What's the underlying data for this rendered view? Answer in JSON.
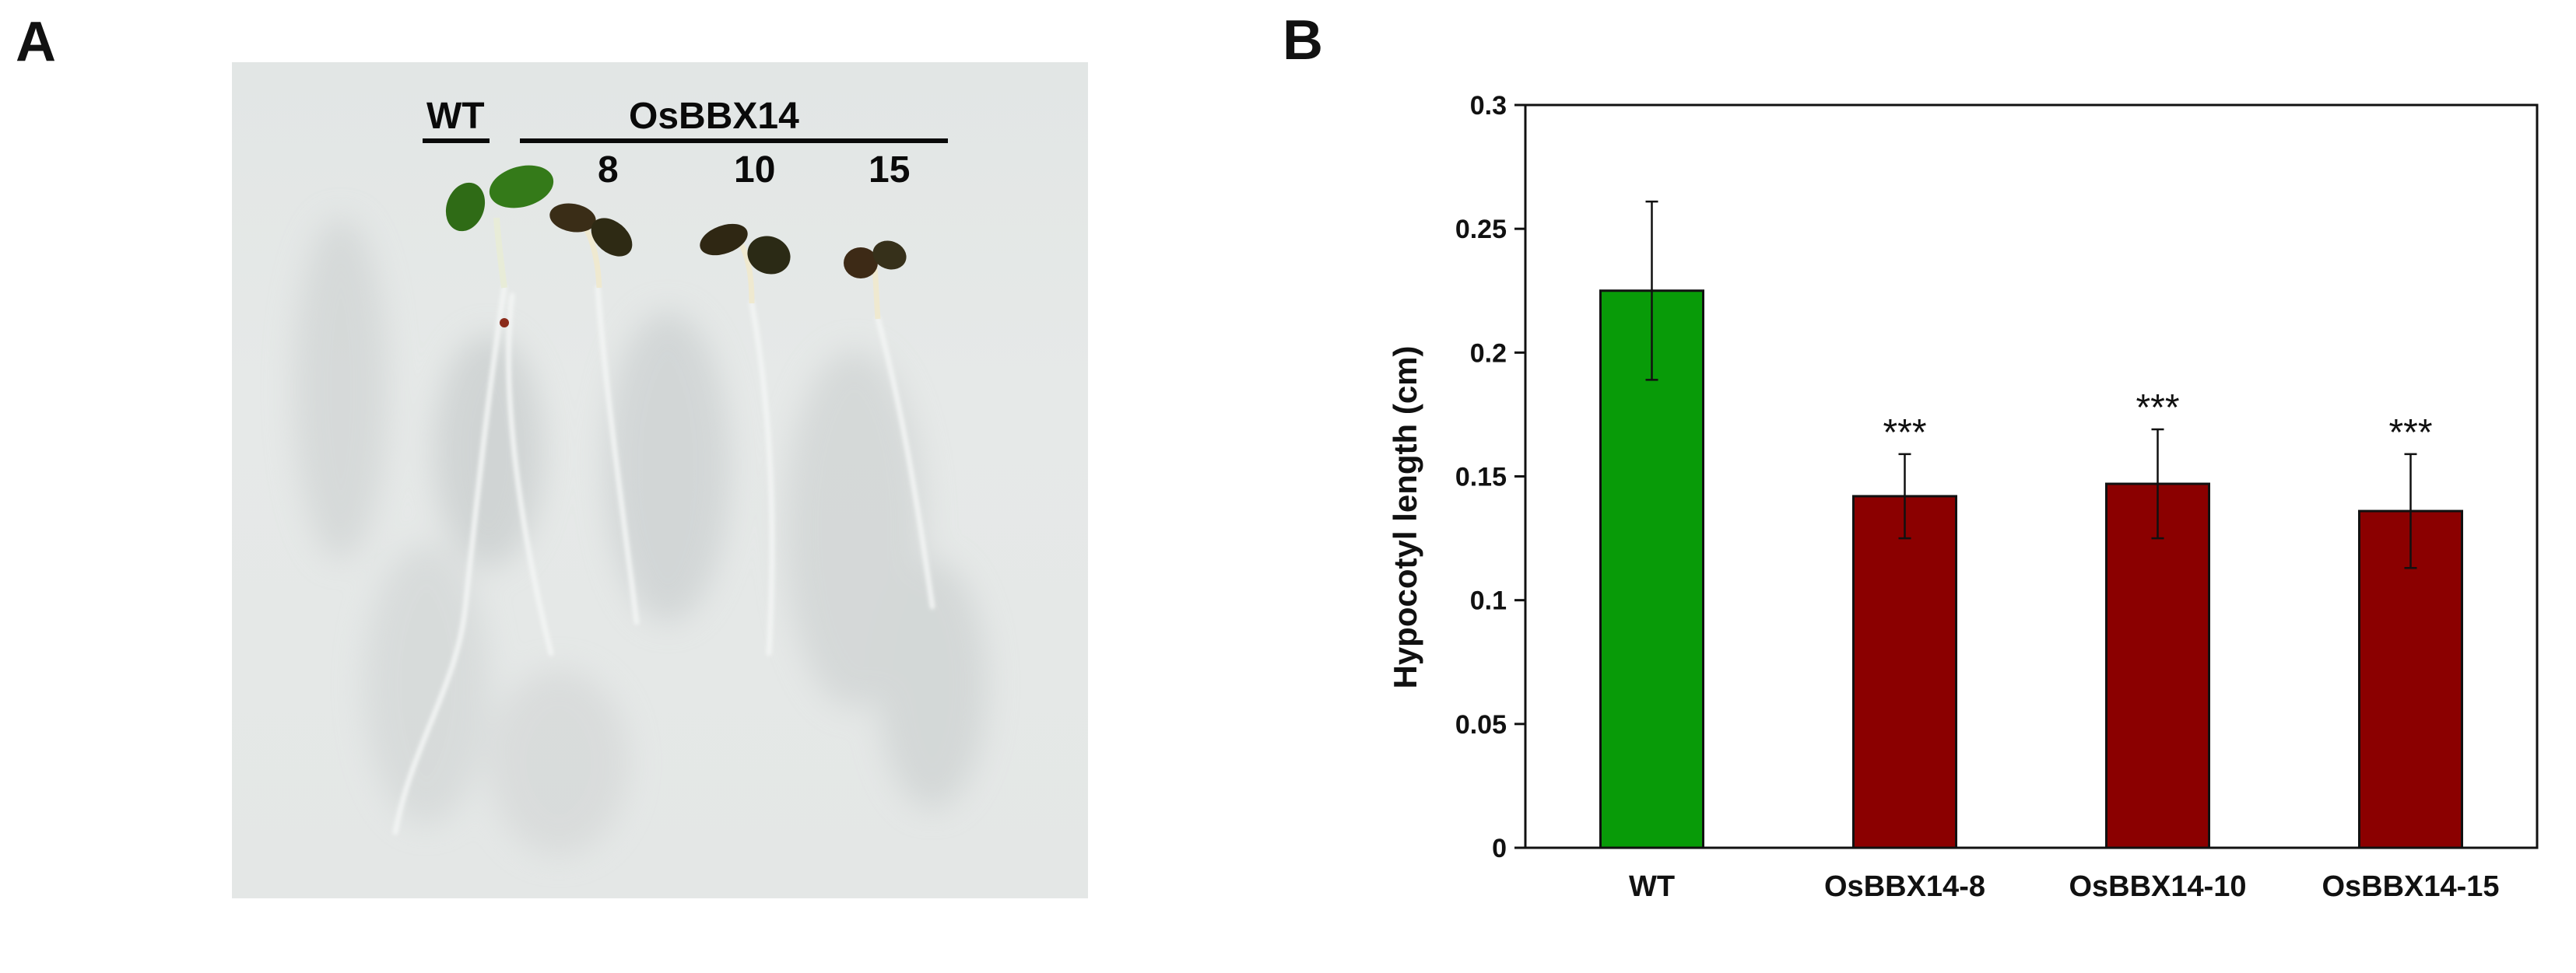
{
  "panel_a": {
    "label": "A",
    "wt_label": "WT",
    "group_label": "OsBBX14",
    "line_labels": [
      "8",
      "10",
      "15"
    ]
  },
  "panel_b": {
    "label": "B"
  },
  "chart_data": {
    "type": "bar",
    "categories": [
      "WT",
      "OsBBX14-8",
      "OsBBX14-10",
      "OsBBX14-15"
    ],
    "values": [
      0.225,
      0.142,
      0.147,
      0.136
    ],
    "error": [
      0.036,
      0.017,
      0.022,
      0.023
    ],
    "significance": [
      "",
      "***",
      "***",
      "***"
    ],
    "colors": [
      "#089b08",
      "#8b0000",
      "#8b0000",
      "#8b0000"
    ],
    "title": "",
    "xlabel": "",
    "ylabel": "Hypocotyl length (cm)",
    "ylim": [
      0,
      0.3
    ],
    "yticks": [
      0,
      0.05,
      0.1,
      0.15,
      0.2,
      0.25,
      0.3
    ],
    "ytick_labels": [
      "0",
      "0.05",
      "0.1",
      "0.15",
      "0.2",
      "0.25",
      "0.3"
    ],
    "grid": false,
    "legend": "none"
  }
}
